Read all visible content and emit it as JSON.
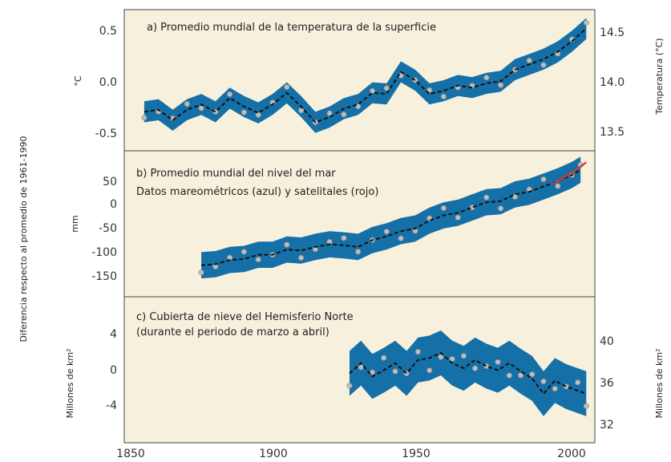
{
  "figure": {
    "shared_ylabel": "Diferencia respecto al promedio de 1961-1990"
  },
  "colors": {
    "panel_bg": "#f7f0dc",
    "band": "#1570a8",
    "line": "#111111",
    "points": "#bdbdbd",
    "satellite": "#e03030"
  },
  "chart_data": [
    {
      "type": "line",
      "title": "a) Promedio mundial de la temperatura de la superficie",
      "ylabel": "°C",
      "ylabel_right": "Temperatura (°C)",
      "xlim": [
        1843,
        2008
      ],
      "ylim": [
        -0.72,
        0.62
      ],
      "yticks": [
        "0.5",
        "0.0",
        "-0.5"
      ],
      "yticks_right": [
        "14.5",
        "14.0",
        "13.5"
      ],
      "band_halfwidth": 0.1,
      "series": [
        {
          "x": [
            1850,
            1855,
            1860,
            1865,
            1870,
            1875,
            1880,
            1885,
            1890,
            1895,
            1900,
            1905,
            1910,
            1915,
            1920,
            1925,
            1930,
            1935,
            1940,
            1945,
            1950,
            1955,
            1960,
            1965,
            1970,
            1975,
            1980,
            1985,
            1990,
            1995,
            2000,
            2005
          ],
          "values": [
            -0.35,
            -0.33,
            -0.43,
            -0.33,
            -0.28,
            -0.35,
            -0.22,
            -0.3,
            -0.36,
            -0.28,
            -0.17,
            -0.3,
            -0.45,
            -0.4,
            -0.32,
            -0.28,
            -0.17,
            -0.18,
            0.03,
            -0.05,
            -0.18,
            -0.15,
            -0.1,
            -0.12,
            -0.08,
            -0.06,
            0.05,
            0.1,
            0.15,
            0.22,
            0.32,
            0.44
          ]
        }
      ]
    },
    {
      "type": "line",
      "title": "b) Promedio mundial del nivel del mar",
      "subtitle": "Datos mareométricos (azul) y satelitales (rojo)",
      "ylabel": "mm",
      "xlim": [
        1843,
        2008
      ],
      "ylim": [
        -190,
        88
      ],
      "yticks": [
        "50",
        "0",
        "-50",
        "-100",
        "-150"
      ],
      "band_halfwidth": 25,
      "series": [
        {
          "x": [
            1870,
            1875,
            1880,
            1885,
            1890,
            1895,
            1900,
            1905,
            1910,
            1915,
            1920,
            1925,
            1930,
            1935,
            1940,
            1945,
            1950,
            1955,
            1960,
            1965,
            1970,
            1975,
            1980,
            1985,
            1990,
            1995,
            2000,
            2003
          ],
          "values": [
            -130,
            -128,
            -120,
            -118,
            -110,
            -110,
            -100,
            -102,
            -95,
            -90,
            -92,
            -95,
            -82,
            -75,
            -65,
            -60,
            -45,
            -35,
            -30,
            -20,
            -10,
            -8,
            5,
            10,
            20,
            30,
            42,
            52
          ]
        },
        {
          "x": [
            1993,
            1995,
            1997,
            1999,
            2001,
            2003,
            2005
          ],
          "values": [
            25,
            30,
            36,
            44,
            50,
            58,
            66
          ]
        }
      ]
    },
    {
      "type": "line",
      "title": "c) Cubierta de nieve del Hemisferio Norte",
      "subtitle": "(durante el periodo de marzo a abril)",
      "ylabel": "Millones de km²",
      "ylabel_right": "Millones de km²",
      "xlim": [
        1843,
        2008
      ],
      "ylim": [
        -7.3,
        7.0
      ],
      "xticks": [
        "1850",
        "1900",
        "1950",
        "2000"
      ],
      "yticks": [
        "4",
        "0",
        "-4"
      ],
      "yticks_right": [
        "40",
        "36",
        "32"
      ],
      "band_halfwidth": 2.2,
      "series": [
        {
          "x": [
            1922,
            1926,
            1930,
            1934,
            1938,
            1942,
            1946,
            1950,
            1954,
            1958,
            1962,
            1966,
            1970,
            1974,
            1978,
            1982,
            1986,
            1990,
            1994,
            1998,
            2002,
            2005
          ],
          "values": [
            -0.5,
            0.5,
            -0.8,
            -0.2,
            0.5,
            -0.5,
            0.8,
            1.0,
            1.5,
            0.5,
            0.0,
            0.8,
            0.2,
            -0.2,
            0.5,
            -0.3,
            -1.0,
            -2.5,
            -1.2,
            -1.8,
            -2.2,
            -2.5
          ]
        }
      ]
    }
  ]
}
